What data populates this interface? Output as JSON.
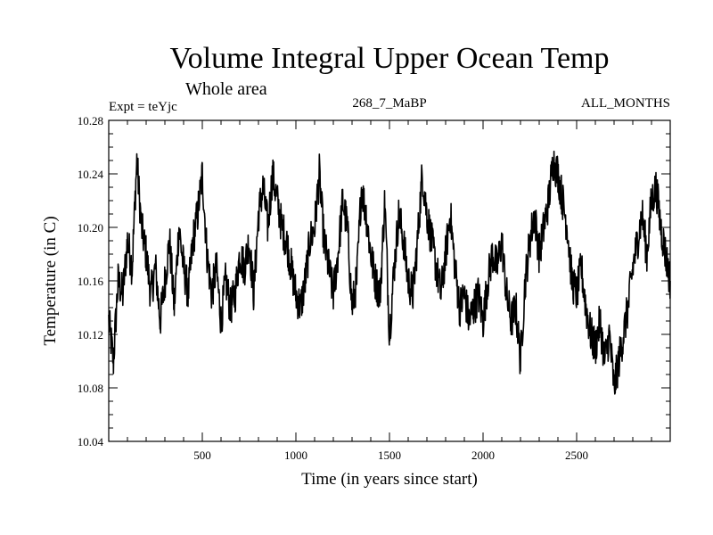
{
  "chart_data": {
    "type": "line",
    "title": "Volume Integral Upper Ocean Temp",
    "subtitle": "Whole area",
    "expt_label": "Expt = teYjc",
    "run_label": "268_7_MaBP",
    "months_label": "ALL_MONTHS",
    "xlabel": "Time (in years since start)",
    "ylabel": "Temperature (in C)",
    "xlim": [
      0,
      3000
    ],
    "ylim": [
      10.04,
      10.28
    ],
    "xticks": [
      500,
      1000,
      1500,
      2000,
      2500
    ],
    "xtick_labels": [
      "500",
      "1000",
      "1500",
      "2000",
      "2500"
    ],
    "yticks": [
      10.04,
      10.08,
      10.12,
      10.16,
      10.2,
      10.24,
      10.28
    ],
    "ytick_labels": [
      "10.04",
      "10.08",
      "10.12",
      "10.16",
      "10.20",
      "10.24",
      "10.28"
    ],
    "grid": false,
    "series": [
      {
        "name": "Volume Integral Upper Ocean Temp",
        "color": "#000000",
        "x": [
          0,
          25,
          50,
          75,
          100,
          125,
          150,
          175,
          200,
          225,
          250,
          275,
          300,
          325,
          350,
          375,
          400,
          425,
          450,
          475,
          500,
          525,
          550,
          575,
          600,
          625,
          650,
          675,
          700,
          725,
          750,
          775,
          800,
          825,
          850,
          875,
          900,
          925,
          950,
          975,
          1000,
          1025,
          1050,
          1075,
          1100,
          1125,
          1150,
          1175,
          1200,
          1225,
          1250,
          1275,
          1300,
          1325,
          1350,
          1375,
          1400,
          1425,
          1450,
          1475,
          1500,
          1525,
          1550,
          1575,
          1600,
          1625,
          1650,
          1675,
          1700,
          1725,
          1750,
          1775,
          1800,
          1825,
          1850,
          1875,
          1900,
          1925,
          1950,
          1975,
          2000,
          2025,
          2050,
          2075,
          2100,
          2125,
          2150,
          2175,
          2200,
          2225,
          2250,
          2275,
          2300,
          2325,
          2350,
          2375,
          2400,
          2425,
          2450,
          2475,
          2500,
          2525,
          2550,
          2575,
          2600,
          2625,
          2650,
          2675,
          2700,
          2725,
          2750,
          2775,
          2800,
          2825,
          2850,
          2875,
          2900,
          2925,
          2950,
          2975,
          3000
        ],
        "y": [
          10.13,
          10.1,
          10.16,
          10.15,
          10.19,
          10.17,
          10.25,
          10.2,
          10.18,
          10.15,
          10.17,
          10.13,
          10.16,
          10.19,
          10.14,
          10.2,
          10.17,
          10.15,
          10.19,
          10.21,
          10.24,
          10.18,
          10.15,
          10.17,
          10.13,
          10.16,
          10.14,
          10.15,
          10.18,
          10.17,
          10.19,
          10.15,
          10.21,
          10.23,
          10.2,
          10.24,
          10.22,
          10.2,
          10.19,
          10.17,
          10.15,
          10.14,
          10.16,
          10.19,
          10.2,
          10.24,
          10.19,
          10.17,
          10.15,
          10.18,
          10.22,
          10.2,
          10.14,
          10.16,
          10.23,
          10.21,
          10.18,
          10.16,
          10.15,
          10.22,
          10.12,
          10.17,
          10.21,
          10.19,
          10.16,
          10.15,
          10.19,
          10.24,
          10.21,
          10.19,
          10.17,
          10.15,
          10.18,
          10.21,
          10.17,
          10.14,
          10.15,
          10.13,
          10.14,
          10.15,
          10.13,
          10.16,
          10.18,
          10.17,
          10.19,
          10.15,
          10.13,
          10.14,
          10.1,
          10.16,
          10.19,
          10.21,
          10.18,
          10.2,
          10.22,
          10.25,
          10.24,
          10.22,
          10.2,
          10.16,
          10.15,
          10.17,
          10.14,
          10.12,
          10.11,
          10.13,
          10.1,
          10.12,
          10.08,
          10.1,
          10.12,
          10.14,
          10.17,
          10.19,
          10.21,
          10.18,
          10.22,
          10.23,
          10.2,
          10.18,
          10.16
        ]
      }
    ]
  }
}
